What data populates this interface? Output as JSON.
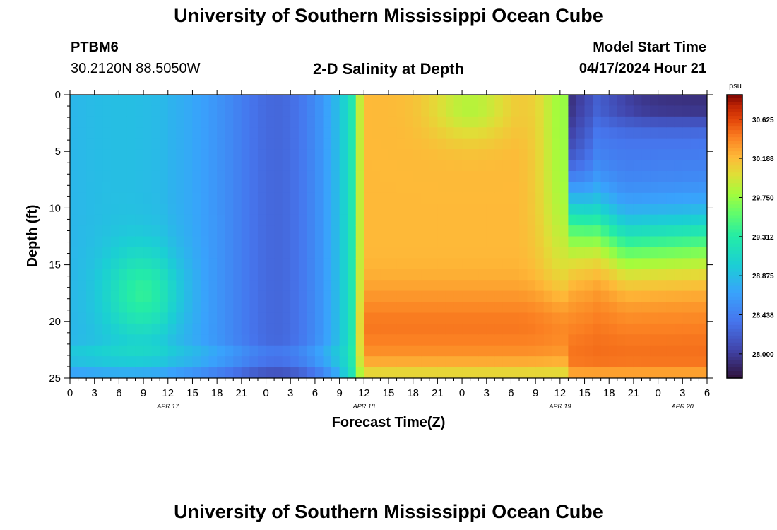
{
  "page_title": "University of Southern Mississippi Ocean Cube",
  "footer_title": "University of Southern Mississippi Ocean Cube",
  "station": {
    "id": "PTBM6",
    "coords": "30.2120N  88.5050W"
  },
  "plot_title": "2-D Salinity at Depth",
  "model_start": {
    "label": "Model Start Time",
    "value": "04/17/2024 Hour 21"
  },
  "chart_data": {
    "type": "heatmap",
    "title": "2-D Salinity at Depth",
    "xlabel": "Forecast Time(Z)",
    "ylabel": "Depth (ft)",
    "x_range_hours": [
      0,
      78
    ],
    "y_range": [
      0,
      25
    ],
    "y_ticks": [
      "0",
      "5",
      "10",
      "15",
      "20",
      "25"
    ],
    "x_ticks": [
      "0",
      "3",
      "6",
      "9",
      "12",
      "15",
      "18",
      "21",
      "0",
      "3",
      "6",
      "9",
      "12",
      "15",
      "18",
      "21",
      "0",
      "3",
      "6",
      "9",
      "12",
      "15",
      "18",
      "21",
      "0",
      "3",
      "6"
    ],
    "date_labels": [
      {
        "text": "APR 17",
        "hour": 12
      },
      {
        "text": "APR 18",
        "hour": 36
      },
      {
        "text": "APR 19",
        "hour": 60
      },
      {
        "text": "APR 20",
        "hour": 75
      }
    ],
    "colorbar": {
      "unit": "psu",
      "min": 27.73,
      "max": 30.9,
      "ticks": [
        "30.625",
        "30.188",
        "29.750",
        "29.312",
        "28.875",
        "28.438",
        "28.000"
      ]
    },
    "n_time": 78,
    "n_depth": 26
  }
}
